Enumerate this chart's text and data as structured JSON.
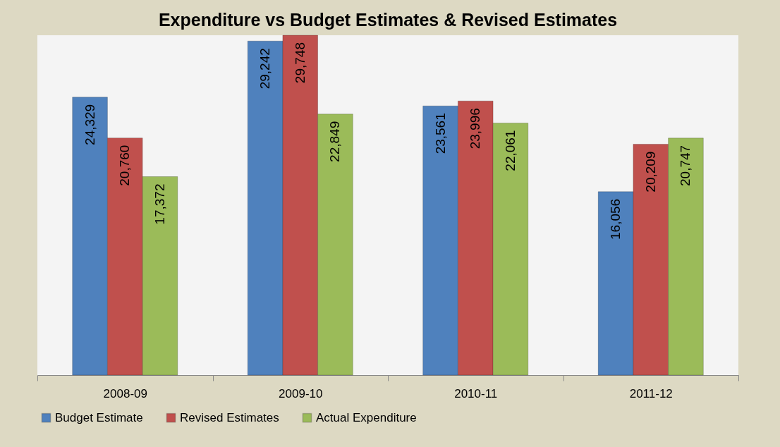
{
  "chart_data": {
    "type": "bar",
    "title": "Expenditure vs Budget Estimates & Revised Estimates",
    "categories": [
      "2008-09",
      "2009-10",
      "2010-11",
      "2011-12"
    ],
    "series": [
      {
        "name": "Budget Estimate",
        "color": "#4f81bd",
        "values": [
          24329,
          29242,
          23561,
          16056
        ],
        "value_labels": [
          "24,329",
          "29,242",
          "23,561",
          "16,056"
        ]
      },
      {
        "name": "Revised Estimates",
        "color": "#c0504d",
        "values": [
          20760,
          29748,
          23996,
          20209
        ],
        "value_labels": [
          "20,760",
          "29,748",
          "23,996",
          "20,209"
        ]
      },
      {
        "name": "Actual Expenditure",
        "color": "#9bbb59",
        "values": [
          17372,
          22849,
          22061,
          20747
        ],
        "value_labels": [
          "17,372",
          "22,849",
          "22,061",
          "20,747"
        ]
      }
    ],
    "legend": "bottom"
  }
}
